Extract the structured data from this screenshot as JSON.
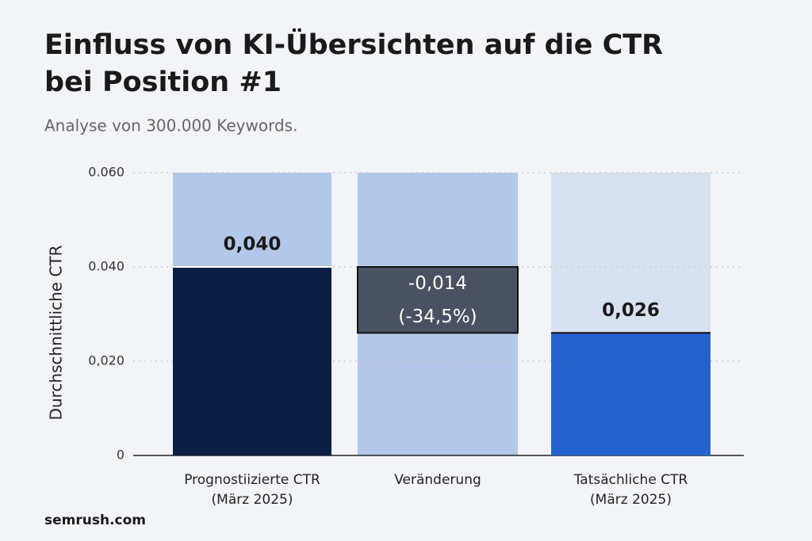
{
  "chart_data": {
    "type": "waterfall",
    "title": [
      "Einfluss von KI-Übersichten auf die CTR",
      "bei Position #1"
    ],
    "subtitle": "Analyse von 300.000 Keywords.",
    "ylabel": "Durchschnittliche CTR",
    "source": "semrush.com",
    "categories": [
      [
        "Prognostiizierte CTR",
        "(März 2025)"
      ],
      [
        "Veränderung"
      ],
      [
        "Tatsächliche CTR",
        "(März 2025)"
      ]
    ],
    "values": [
      0.04,
      -0.014,
      0.026
    ],
    "value_labels": [
      "0,040",
      "-0,014",
      "0,026"
    ],
    "annotations": [
      null,
      "(-34,5%)",
      null
    ],
    "colors": [
      "#0b1f45",
      "#4a5160",
      "#2563cc"
    ],
    "background_colors": [
      "#b3c7e8",
      "#b3c7e8",
      "#d8e1f0"
    ],
    "ylim": [
      0,
      0.06
    ],
    "yticks": [
      0,
      {
        "value": 0.02,
        "label": "0,020"
      },
      {
        "value": 0.04,
        "label": "0.040"
      },
      {
        "value": 0.06,
        "label": "0.060"
      }
    ],
    "grid": true
  }
}
